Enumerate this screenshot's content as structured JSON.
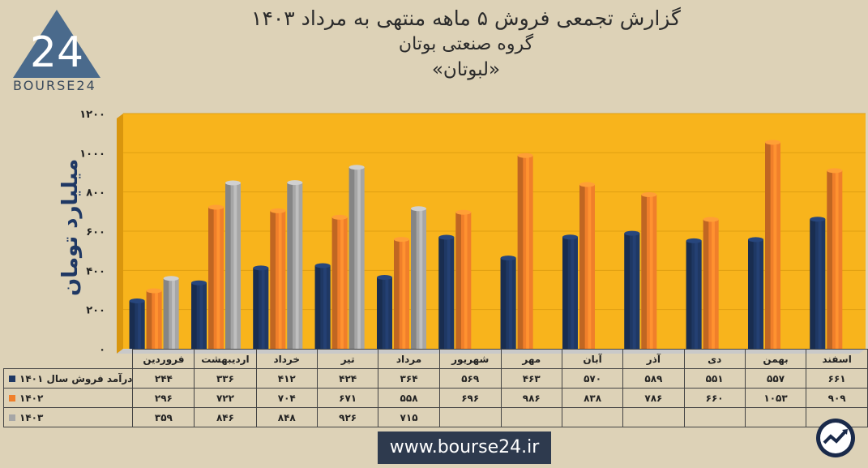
{
  "title": {
    "line1": "گزارش تجمعی فروش ۵ ماهه منتهی به مرداد ۱۴۰۳",
    "line2": "گروه صنعتی بوتان",
    "line3": "«لبوتان»"
  },
  "logo": {
    "mark": "24",
    "text": "BOURSE24"
  },
  "website": "www.bourse24.ir",
  "chart_data": {
    "type": "bar",
    "ylabel": "میلیارد تومان",
    "ylim": [
      0,
      1200
    ],
    "yticks": [
      0,
      200,
      400,
      600,
      800,
      1000,
      1200
    ],
    "ytick_labels": [
      "۰",
      "۲۰۰",
      "۴۰۰",
      "۶۰۰",
      "۸۰۰",
      "۱۰۰۰",
      "۱۲۰۰"
    ],
    "grid": true,
    "categories": [
      "فروردین",
      "اردیبهشت",
      "خرداد",
      "تیر",
      "مرداد",
      "شهریور",
      "مهر",
      "آبان",
      "آذر",
      "دی",
      "بهمن",
      "اسفند"
    ],
    "series": [
      {
        "name": "درآمد فروش سال ۱۴۰۱",
        "color": "#1f3864",
        "values": [
          244,
          336,
          412,
          424,
          364,
          569,
          463,
          570,
          589,
          551,
          557,
          661
        ],
        "labels": [
          "۲۴۴",
          "۳۳۶",
          "۴۱۲",
          "۴۲۴",
          "۳۶۴",
          "۵۶۹",
          "۴۶۳",
          "۵۷۰",
          "۵۸۹",
          "۵۵۱",
          "۵۵۷",
          "۶۶۱"
        ]
      },
      {
        "name": "۱۴۰۲",
        "color": "#f07f2a",
        "values": [
          296,
          722,
          704,
          671,
          558,
          696,
          986,
          838,
          786,
          660,
          1053,
          909
        ],
        "labels": [
          "۲۹۶",
          "۷۲۲",
          "۷۰۴",
          "۶۷۱",
          "۵۵۸",
          "۶۹۶",
          "۹۸۶",
          "۸۳۸",
          "۷۸۶",
          "۶۶۰",
          "۱۰۵۳",
          "۹۰۹"
        ]
      },
      {
        "name": "۱۴۰۳",
        "color": "#a6a6a6",
        "values": [
          359,
          846,
          848,
          926,
          715,
          null,
          null,
          null,
          null,
          null,
          null,
          null
        ],
        "labels": [
          "۳۵۹",
          "۸۴۶",
          "۸۴۸",
          "۹۲۶",
          "۷۱۵",
          "",
          "",
          "",
          "",
          "",
          "",
          ""
        ]
      }
    ],
    "colors": {
      "plot_bg": "#f8b41c",
      "side_wall": "#d9960e",
      "floor": "#c9c9c9"
    },
    "legend": "table-left"
  }
}
